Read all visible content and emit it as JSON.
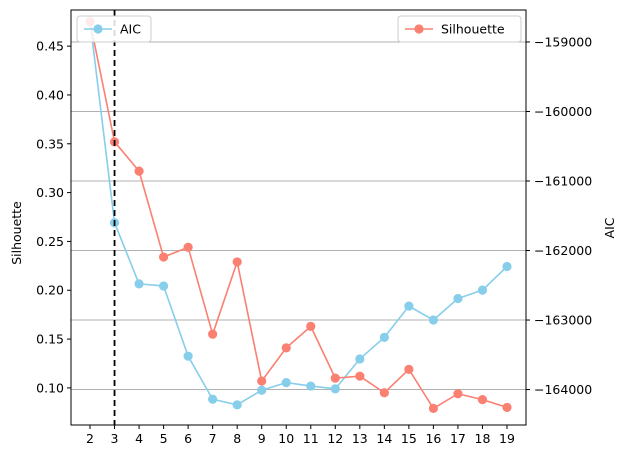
{
  "chart_data": {
    "type": "line",
    "x": [
      2,
      3,
      4,
      5,
      6,
      7,
      8,
      9,
      10,
      11,
      12,
      13,
      14,
      15,
      16,
      17,
      18,
      19
    ],
    "x_ticks": [
      "2",
      "3",
      "4",
      "5",
      "6",
      "7",
      "8",
      "9",
      "10",
      "11",
      "12",
      "13",
      "14",
      "15",
      "16",
      "17",
      "18",
      "19"
    ],
    "marker_line_x": 3,
    "grid": "horizontal lines at right-axis ticks",
    "left_axis": {
      "label": "Silhouette",
      "ylim": [
        0.062,
        0.487
      ],
      "ticks": [
        0.1,
        0.15,
        0.2,
        0.25,
        0.3,
        0.35,
        0.4,
        0.45
      ],
      "tick_labels": [
        "0.10",
        "0.15",
        "0.20",
        "0.25",
        "0.30",
        "0.35",
        "0.40",
        "0.45"
      ]
    },
    "right_axis": {
      "label": "AIC",
      "ylim": [
        -164510,
        -158540
      ],
      "ticks": [
        -159000,
        -160000,
        -161000,
        -162000,
        -163000,
        -164000
      ],
      "tick_labels": [
        "−159000",
        "−160000",
        "−161000",
        "−162000",
        "−163000",
        "−164000"
      ]
    },
    "series": [
      {
        "name": "AIC",
        "axis": "right",
        "color": "#87ceeb",
        "legend_position": "top-left",
        "values": [
          -158700,
          -161600,
          -162480,
          -162510,
          -163520,
          -164140,
          -164220,
          -164010,
          -163900,
          -163950,
          -163990,
          -163560,
          -163250,
          -162800,
          -163000,
          -162690,
          -162570,
          -162230
        ]
      },
      {
        "name": "Silhouette",
        "axis": "left",
        "color": "#fa8072",
        "legend_position": "top-right",
        "values": [
          0.475,
          0.352,
          0.322,
          0.234,
          0.244,
          0.155,
          0.229,
          0.107,
          0.141,
          0.163,
          0.11,
          0.112,
          0.095,
          0.119,
          0.079,
          0.094,
          0.088,
          0.08
        ]
      }
    ]
  }
}
